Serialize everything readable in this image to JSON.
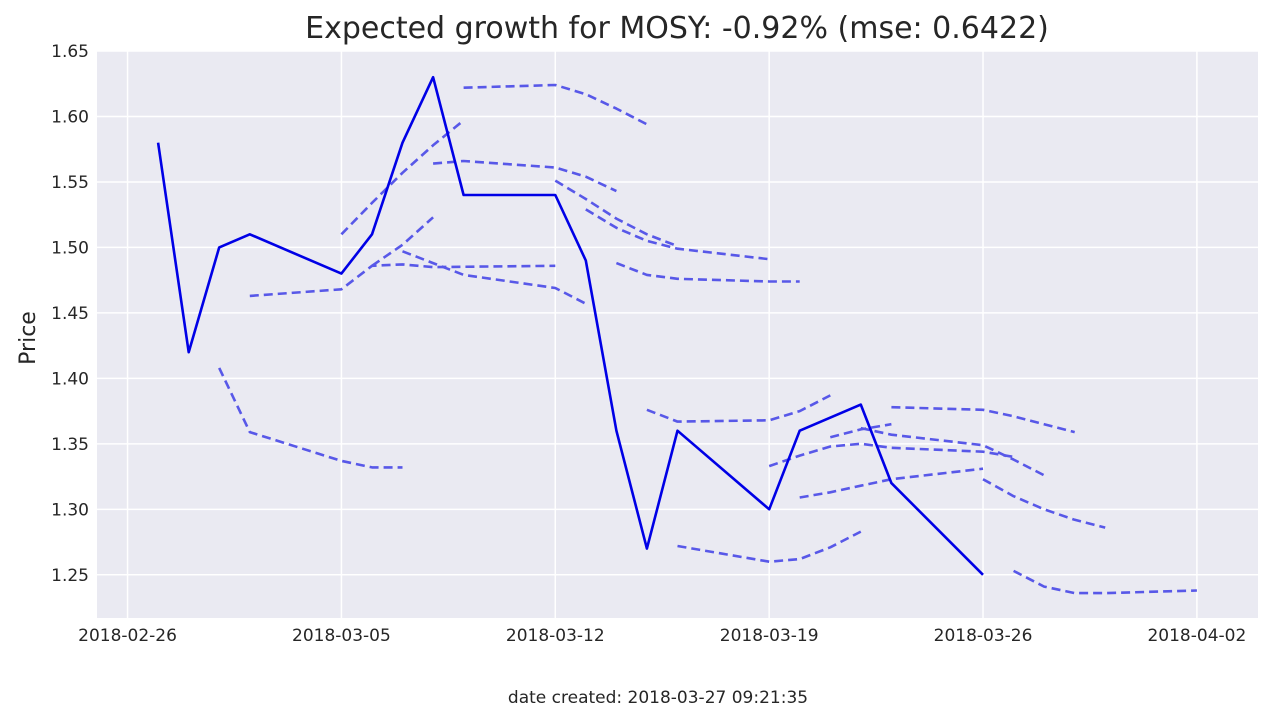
{
  "chart_data": {
    "type": "line",
    "title": "Expected growth for MOSY: -0.92% (mse: 0.6422)",
    "xlabel": "",
    "ylabel": "Price",
    "footer": "date created: 2018-03-27 09:21:35",
    "x_range": [
      "2018-02-25",
      "2018-04-04"
    ],
    "ylim": [
      1.217,
      1.65
    ],
    "grid": true,
    "x_ticks": [
      "2018-02-26",
      "2018-03-05",
      "2018-03-12",
      "2018-03-19",
      "2018-03-26",
      "2018-04-02"
    ],
    "y_ticks": [
      1.25,
      1.3,
      1.35,
      1.4,
      1.45,
      1.5,
      1.55,
      1.6,
      1.65
    ],
    "y_tick_labels": [
      "1.25",
      "1.30",
      "1.35",
      "1.40",
      "1.45",
      "1.50",
      "1.55",
      "1.60",
      "1.65"
    ],
    "colors": {
      "actual": "#0000e6",
      "forecast": "#5858e8",
      "background": "#eaeaf2",
      "grid": "#ffffff"
    },
    "actual": {
      "style": "solid",
      "points": [
        [
          "2018-02-27",
          1.58
        ],
        [
          "2018-02-28",
          1.42
        ],
        [
          "2018-03-01",
          1.5
        ],
        [
          "2018-03-02",
          1.51
        ],
        [
          "2018-03-05",
          1.48
        ],
        [
          "2018-03-06",
          1.51
        ],
        [
          "2018-03-07",
          1.58
        ],
        [
          "2018-03-08",
          1.63
        ],
        [
          "2018-03-09",
          1.54
        ],
        [
          "2018-03-12",
          1.54
        ],
        [
          "2018-03-13",
          1.49
        ],
        [
          "2018-03-14",
          1.36
        ],
        [
          "2018-03-15",
          1.27
        ],
        [
          "2018-03-16",
          1.36
        ],
        [
          "2018-03-19",
          1.3
        ],
        [
          "2018-03-20",
          1.36
        ],
        [
          "2018-03-22",
          1.38
        ],
        [
          "2018-03-23",
          1.32
        ],
        [
          "2018-03-26",
          1.25
        ]
      ]
    },
    "forecasts": [
      {
        "style": "dashed",
        "points": [
          [
            "2018-03-01",
            1.408
          ],
          [
            "2018-03-02",
            1.359
          ],
          [
            "2018-03-05",
            1.337
          ],
          [
            "2018-03-06",
            1.332
          ],
          [
            "2018-03-07",
            1.332
          ]
        ]
      },
      {
        "style": "dashed",
        "points": [
          [
            "2018-03-02",
            1.463
          ],
          [
            "2018-03-05",
            1.468
          ],
          [
            "2018-03-06",
            1.486
          ],
          [
            "2018-03-07",
            1.487
          ],
          [
            "2018-03-08",
            1.485
          ],
          [
            "2018-03-12",
            1.486
          ]
        ]
      },
      {
        "style": "dashed",
        "points": [
          [
            "2018-03-05",
            1.51
          ],
          [
            "2018-03-06",
            1.534
          ],
          [
            "2018-03-07",
            1.557
          ],
          [
            "2018-03-08",
            1.578
          ],
          [
            "2018-03-09",
            1.597
          ]
        ]
      },
      {
        "style": "dashed",
        "points": [
          [
            "2018-03-06",
            1.486
          ],
          [
            "2018-03-07",
            1.502
          ],
          [
            "2018-03-08",
            1.523
          ]
        ]
      },
      {
        "style": "dashed",
        "points": [
          [
            "2018-03-07",
            1.497
          ],
          [
            "2018-03-08",
            1.488
          ],
          [
            "2018-03-09",
            1.479
          ],
          [
            "2018-03-12",
            1.469
          ],
          [
            "2018-03-13",
            1.457
          ]
        ]
      },
      {
        "style": "dashed",
        "points": [
          [
            "2018-03-08",
            1.564
          ],
          [
            "2018-03-09",
            1.566
          ],
          [
            "2018-03-12",
            1.561
          ],
          [
            "2018-03-13",
            1.554
          ],
          [
            "2018-03-14",
            1.543
          ]
        ]
      },
      {
        "style": "dashed",
        "points": [
          [
            "2018-03-09",
            1.622
          ],
          [
            "2018-03-12",
            1.624
          ],
          [
            "2018-03-13",
            1.617
          ],
          [
            "2018-03-14",
            1.606
          ],
          [
            "2018-03-15",
            1.594
          ]
        ]
      },
      {
        "style": "dashed",
        "points": [
          [
            "2018-03-12",
            1.551
          ],
          [
            "2018-03-13",
            1.537
          ],
          [
            "2018-03-14",
            1.522
          ],
          [
            "2018-03-15",
            1.51
          ],
          [
            "2018-03-16",
            1.501
          ]
        ]
      },
      {
        "style": "dashed",
        "points": [
          [
            "2018-03-13",
            1.529
          ],
          [
            "2018-03-14",
            1.515
          ],
          [
            "2018-03-15",
            1.505
          ],
          [
            "2018-03-16",
            1.499
          ],
          [
            "2018-03-19",
            1.491
          ]
        ]
      },
      {
        "style": "dashed",
        "points": [
          [
            "2018-03-14",
            1.488
          ],
          [
            "2018-03-15",
            1.479
          ],
          [
            "2018-03-16",
            1.476
          ],
          [
            "2018-03-19",
            1.474
          ],
          [
            "2018-03-20",
            1.474
          ]
        ]
      },
      {
        "style": "dashed",
        "points": [
          [
            "2018-03-15",
            1.376
          ],
          [
            "2018-03-16",
            1.367
          ],
          [
            "2018-03-19",
            1.368
          ],
          [
            "2018-03-20",
            1.375
          ],
          [
            "2018-03-21",
            1.387
          ]
        ]
      },
      {
        "style": "dashed",
        "points": [
          [
            "2018-03-16",
            1.272
          ],
          [
            "2018-03-19",
            1.26
          ],
          [
            "2018-03-20",
            1.262
          ],
          [
            "2018-03-21",
            1.271
          ],
          [
            "2018-03-22",
            1.283
          ]
        ]
      },
      {
        "style": "dashed",
        "points": [
          [
            "2018-03-19",
            1.333
          ],
          [
            "2018-03-20",
            1.341
          ],
          [
            "2018-03-21",
            1.348
          ],
          [
            "2018-03-22",
            1.35
          ],
          [
            "2018-03-23",
            1.347
          ],
          [
            "2018-03-26",
            1.344
          ],
          [
            "2018-03-27",
            1.34
          ]
        ]
      },
      {
        "style": "dashed",
        "points": [
          [
            "2018-03-20",
            1.309
          ],
          [
            "2018-03-21",
            1.313
          ],
          [
            "2018-03-22",
            1.318
          ],
          [
            "2018-03-23",
            1.323
          ],
          [
            "2018-03-26",
            1.331
          ]
        ]
      },
      {
        "style": "dashed",
        "points": [
          [
            "2018-03-21",
            1.355
          ],
          [
            "2018-03-22",
            1.361
          ],
          [
            "2018-03-23",
            1.365
          ]
        ]
      },
      {
        "style": "dashed",
        "points": [
          [
            "2018-03-22",
            1.362
          ],
          [
            "2018-03-23",
            1.357
          ],
          [
            "2018-03-26",
            1.349
          ],
          [
            "2018-03-27",
            1.338
          ],
          [
            "2018-03-28",
            1.326
          ]
        ]
      },
      {
        "style": "dashed",
        "points": [
          [
            "2018-03-23",
            1.378
          ],
          [
            "2018-03-26",
            1.376
          ],
          [
            "2018-03-27",
            1.371
          ],
          [
            "2018-03-28",
            1.365
          ],
          [
            "2018-03-29",
            1.359
          ]
        ]
      },
      {
        "style": "dashed",
        "points": [
          [
            "2018-03-26",
            1.323
          ],
          [
            "2018-03-27",
            1.31
          ],
          [
            "2018-03-28",
            1.3
          ],
          [
            "2018-03-29",
            1.292
          ],
          [
            "2018-03-30",
            1.286
          ]
        ]
      },
      {
        "style": "dashed",
        "points": [
          [
            "2018-03-27",
            1.253
          ],
          [
            "2018-03-28",
            1.241
          ],
          [
            "2018-03-29",
            1.236
          ],
          [
            "2018-03-30",
            1.236
          ],
          [
            "2018-04-02",
            1.238
          ]
        ]
      }
    ]
  }
}
